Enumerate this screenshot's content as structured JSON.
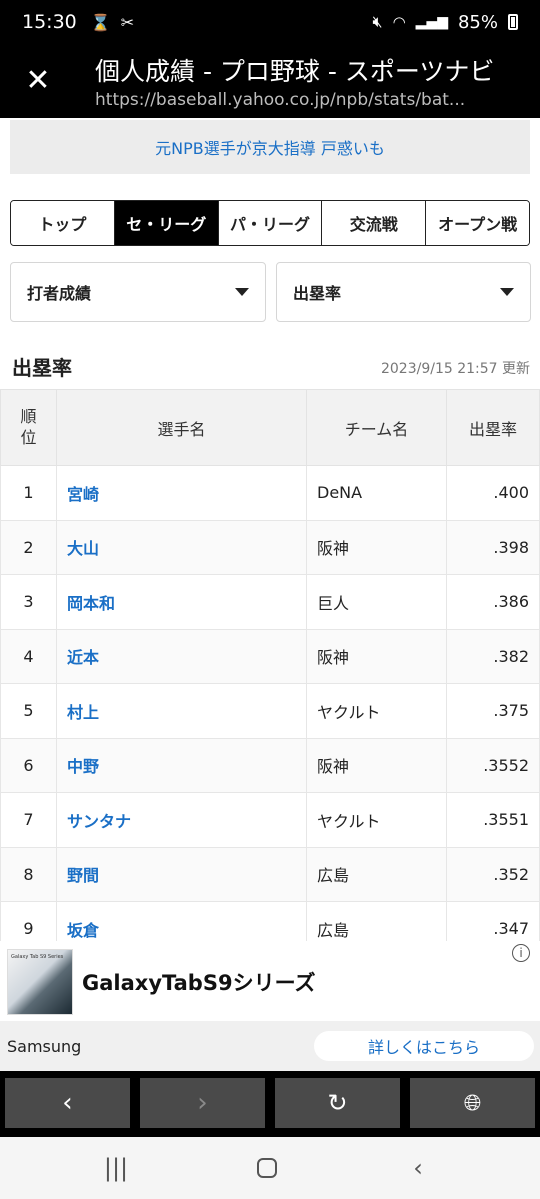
{
  "status_bar": {
    "time": "15:30",
    "battery": "85%",
    "icons": [
      "hourglass-icon",
      "scissors-icon",
      "mute-icon",
      "wifi-icon",
      "signal-icon",
      "battery-icon"
    ]
  },
  "title_bar": {
    "title": "個人成績 - プロ野球 - スポーツナビ",
    "url": "https://baseball.yahoo.co.jp/npb/stats/bat..."
  },
  "news_banner": "元NPB選手が京大指導 戸惑いも",
  "league_tabs": [
    {
      "label": "トップ",
      "active": false
    },
    {
      "label": "セ・リーグ",
      "active": true
    },
    {
      "label": "パ・リーグ",
      "active": false
    },
    {
      "label": "交流戦",
      "active": false
    },
    {
      "label": "オープン戦",
      "active": false
    }
  ],
  "dropdowns": {
    "category": "打者成績",
    "stat": "出塁率"
  },
  "section": {
    "title": "出塁率",
    "updated": "2023/9/15 21:57 更新"
  },
  "table": {
    "headers": {
      "rank": "順位",
      "name": "選手名",
      "team": "チーム名",
      "value": "出塁率"
    },
    "rows": [
      {
        "rank": "1",
        "name": "宮崎",
        "team": "DeNA",
        "value": ".400"
      },
      {
        "rank": "2",
        "name": "大山",
        "team": "阪神",
        "value": ".398"
      },
      {
        "rank": "3",
        "name": "岡本和",
        "team": "巨人",
        "value": ".386"
      },
      {
        "rank": "4",
        "name": "近本",
        "team": "阪神",
        "value": ".382"
      },
      {
        "rank": "5",
        "name": "村上",
        "team": "ヤクルト",
        "value": ".375"
      },
      {
        "rank": "6",
        "name": "中野",
        "team": "阪神",
        "value": ".3552"
      },
      {
        "rank": "7",
        "name": "サンタナ",
        "team": "ヤクルト",
        "value": ".3551"
      },
      {
        "rank": "8",
        "name": "野間",
        "team": "広島",
        "value": ".352"
      },
      {
        "rank": "9",
        "name": "坂倉",
        "team": "広島",
        "value": ".347"
      }
    ]
  },
  "ad": {
    "image_caption": "Galaxy Tab S9 Series",
    "headline": "GalaxyTabS9シリーズ",
    "advertiser": "Samsung",
    "cta": "詳しくはこちら"
  },
  "colors": {
    "link": "#1a6fc6",
    "active_tab": "#000000",
    "nav_button": "#4a4a4a"
  }
}
